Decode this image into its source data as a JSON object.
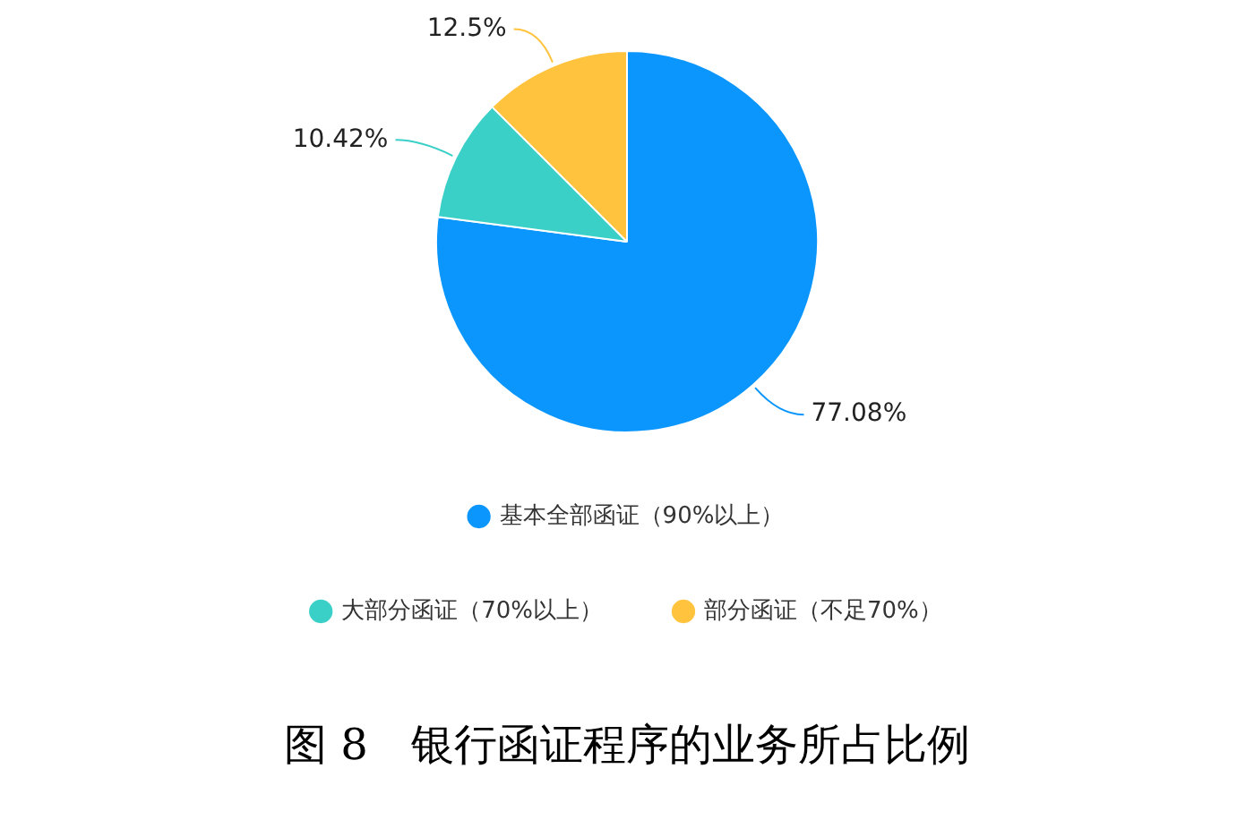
{
  "chart_data": {
    "type": "pie",
    "title": "图 8　银行函证程序的业务所占比例",
    "categories": [
      "基本全部函证（90%以上）",
      "大部分函证（70%以上）",
      "部分函证（不足70%）"
    ],
    "values": [
      77.08,
      10.42,
      12.5
    ],
    "value_labels": [
      "77.08%",
      "10.42%",
      "12.5%"
    ],
    "colors": [
      "#0a96fc",
      "#3ad0c8",
      "#ffc33e"
    ],
    "legend": "bottom"
  }
}
